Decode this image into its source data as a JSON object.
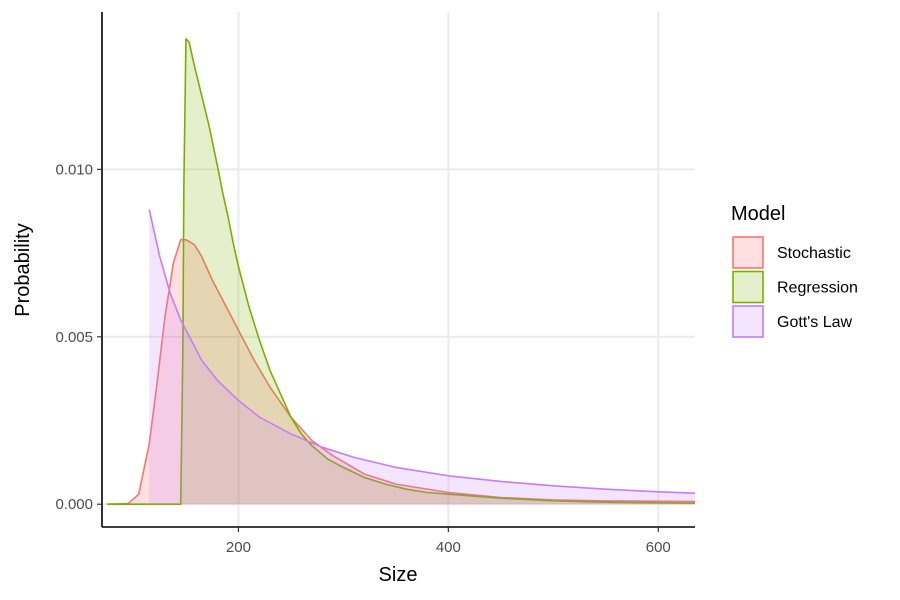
{
  "chart_data": {
    "type": "area",
    "xlabel": "Size",
    "ylabel": "Probability",
    "xlim": [
      70,
      635
    ],
    "ylim": [
      -0.00068,
      0.0147
    ],
    "x_ticks": [
      200,
      400,
      600
    ],
    "x_tick_labels": [
      "200",
      "400",
      "600"
    ],
    "y_ticks": [
      0.0,
      0.005,
      0.01
    ],
    "y_tick_labels": [
      "0.000",
      "0.005",
      "0.010"
    ],
    "grid": true,
    "legend": {
      "title": "Model",
      "placement": "right"
    },
    "series": [
      {
        "name": "Stochastic",
        "color": "#F8766D",
        "fill": "#FF0000",
        "fill_opacity": 0.12,
        "points": [
          [
            75,
            0
          ],
          [
            95,
            2e-05
          ],
          [
            105,
            0.0003
          ],
          [
            115,
            0.0018
          ],
          [
            122,
            0.0035
          ],
          [
            130,
            0.0056
          ],
          [
            138,
            0.0072
          ],
          [
            145,
            0.0079
          ],
          [
            150,
            0.0079
          ],
          [
            158,
            0.00775
          ],
          [
            165,
            0.0074
          ],
          [
            175,
            0.0067
          ],
          [
            185,
            0.0061
          ],
          [
            200,
            0.0052
          ],
          [
            215,
            0.0043
          ],
          [
            230,
            0.0035
          ],
          [
            250,
            0.0026
          ],
          [
            270,
            0.0019
          ],
          [
            290,
            0.00145
          ],
          [
            320,
            0.0009
          ],
          [
            350,
            0.0006
          ],
          [
            400,
            0.00035
          ],
          [
            450,
            0.0002
          ],
          [
            500,
            0.00013
          ],
          [
            550,
            0.0001
          ],
          [
            635,
            8e-05
          ]
        ]
      },
      {
        "name": "Regression",
        "color": "#7CAE00",
        "fill": "#7CAE00",
        "fill_opacity": 0.2,
        "points": [
          [
            75,
            0
          ],
          [
            145,
            0
          ],
          [
            147,
            0.0045
          ],
          [
            148,
            0.0095
          ],
          [
            150,
            0.0139
          ],
          [
            153,
            0.0138
          ],
          [
            158,
            0.0131
          ],
          [
            165,
            0.0122
          ],
          [
            172,
            0.0113
          ],
          [
            180,
            0.0101
          ],
          [
            185,
            0.0093
          ],
          [
            190,
            0.0086
          ],
          [
            195,
            0.0078
          ],
          [
            200,
            0.0071
          ],
          [
            205,
            0.0065
          ],
          [
            210,
            0.0059
          ],
          [
            220,
            0.0049
          ],
          [
            230,
            0.004
          ],
          [
            240,
            0.0033
          ],
          [
            250,
            0.0026
          ],
          [
            260,
            0.0021
          ],
          [
            270,
            0.00175
          ],
          [
            285,
            0.00135
          ],
          [
            300,
            0.0011
          ],
          [
            320,
            0.0008
          ],
          [
            340,
            0.0006
          ],
          [
            360,
            0.00045
          ],
          [
            380,
            0.00035
          ],
          [
            400,
            0.0003
          ],
          [
            450,
            0.00018
          ],
          [
            500,
            0.0001
          ],
          [
            550,
            6e-05
          ],
          [
            635,
            3e-05
          ]
        ]
      },
      {
        "name": "Gott's Law",
        "color": "#C77CFF",
        "fill": "#C77CFF",
        "fill_opacity": 0.2,
        "points": [
          [
            115,
            0.0088
          ],
          [
            125,
            0.0074
          ],
          [
            135,
            0.0063
          ],
          [
            145,
            0.0055
          ],
          [
            155,
            0.0049
          ],
          [
            165,
            0.0043
          ],
          [
            180,
            0.0037
          ],
          [
            200,
            0.0031
          ],
          [
            220,
            0.0026
          ],
          [
            250,
            0.0021
          ],
          [
            280,
            0.0017
          ],
          [
            310,
            0.0014
          ],
          [
            350,
            0.0011
          ],
          [
            400,
            0.00085
          ],
          [
            450,
            0.00068
          ],
          [
            500,
            0.00055
          ],
          [
            550,
            0.00045
          ],
          [
            600,
            0.00037
          ],
          [
            635,
            0.00033
          ]
        ]
      }
    ]
  }
}
